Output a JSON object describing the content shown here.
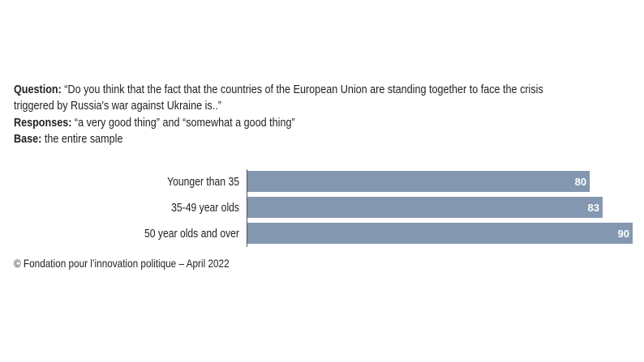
{
  "header": {
    "question_label": "Question:",
    "question_line1": "“Do you think that the fact that the countries of the European Union are standing together to face the crisis",
    "question_line2": "triggered by Russia's war against Ukraine is..”",
    "responses_label": "Responses:",
    "responses_text": "“a very good thing” and “somewhat a good thing”",
    "base_label": "Base:",
    "base_text": "the entire sample"
  },
  "footer": {
    "source": "© Fondation pour l’innovation politique – April 2022"
  },
  "chart_data": {
    "type": "bar",
    "orientation": "horizontal",
    "categories": [
      "Younger than 35",
      "35-49 year olds",
      "50 year olds and over"
    ],
    "values": [
      80,
      83,
      90
    ],
    "xlim": [
      0,
      90
    ],
    "grid": false,
    "bar_color": "#8497b0",
    "label_color": "#ffffff"
  }
}
